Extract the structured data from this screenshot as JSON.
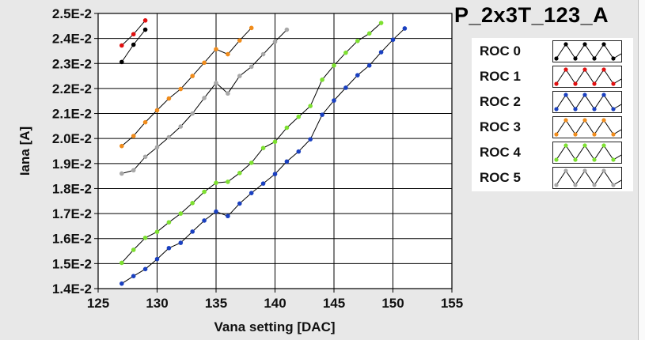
{
  "chart_data": {
    "type": "line",
    "title": "P_2x3T_123_A",
    "xlabel": "Vana setting [DAC]",
    "ylabel": "Iana [A]",
    "xlim": [
      125,
      155
    ],
    "ylim": [
      0.014,
      0.025
    ],
    "grid": true,
    "legend_position": "right",
    "x_tick_labels": [
      "125",
      "130",
      "135",
      "140",
      "145",
      "150",
      "155"
    ],
    "y_tick_labels": [
      "1.4E-2",
      "1.5E-2",
      "1.6E-2",
      "1.7E-2",
      "1.8E-2",
      "1.9E-2",
      "2.0E-2",
      "2.1E-2",
      "2.2E-2",
      "2.3E-2",
      "2.4E-2",
      "2.5E-2"
    ],
    "series": [
      {
        "name": "ROC 0",
        "color": "#000000",
        "x": [
          127,
          128,
          129
        ],
        "y": [
          0.02306,
          0.02375,
          0.02435
        ]
      },
      {
        "name": "ROC 1",
        "color": "#e01010",
        "x": [
          127,
          128,
          129
        ],
        "y": [
          0.02372,
          0.02417,
          0.02472
        ]
      },
      {
        "name": "ROC 2",
        "color": "#1a40c0",
        "x": [
          127,
          128,
          129,
          130,
          131,
          132,
          133,
          134,
          135,
          136,
          137,
          138,
          139,
          140,
          141,
          142,
          143,
          144,
          145,
          146,
          147,
          148,
          149,
          150,
          151
        ],
        "y": [
          0.0142,
          0.0145,
          0.01478,
          0.01518,
          0.01562,
          0.01583,
          0.01628,
          0.01672,
          0.01708,
          0.0169,
          0.0174,
          0.01782,
          0.0182,
          0.01858,
          0.01908,
          0.01948,
          0.01997,
          0.02095,
          0.02152,
          0.02203,
          0.02253,
          0.02292,
          0.02345,
          0.02395,
          0.0244
        ]
      },
      {
        "name": "ROC 3",
        "color": "#f08c1c",
        "x": [
          127,
          128,
          129,
          130,
          131,
          132,
          133,
          134,
          135,
          136,
          137,
          138
        ],
        "y": [
          0.0197,
          0.0201,
          0.02065,
          0.02113,
          0.0216,
          0.02198,
          0.0225,
          0.02303,
          0.02357,
          0.02337,
          0.02392,
          0.02442
        ]
      },
      {
        "name": "ROC 4",
        "color": "#7de030",
        "x": [
          127,
          128,
          129,
          130,
          131,
          132,
          133,
          134,
          135,
          136,
          137,
          138,
          139,
          140,
          141,
          142,
          143,
          144,
          145,
          146,
          147,
          148,
          149
        ],
        "y": [
          0.01503,
          0.01555,
          0.01603,
          0.01627,
          0.01665,
          0.017,
          0.01742,
          0.01787,
          0.01823,
          0.01827,
          0.01862,
          0.01903,
          0.01962,
          0.01987,
          0.02043,
          0.02087,
          0.0213,
          0.02235,
          0.02292,
          0.02343,
          0.0239,
          0.0242,
          0.02462
        ]
      },
      {
        "name": "ROC 5",
        "color": "#a8a8a8",
        "x": [
          127,
          128,
          129,
          130,
          131,
          132,
          133,
          134,
          135,
          136,
          137,
          138,
          139,
          140,
          141
        ],
        "y": [
          0.0186,
          0.01873,
          0.01927,
          0.01965,
          0.02005,
          0.02048,
          0.021,
          0.02162,
          0.02222,
          0.0218,
          0.0225,
          0.02287,
          0.02337,
          0.02387,
          0.02435
        ]
      }
    ]
  }
}
